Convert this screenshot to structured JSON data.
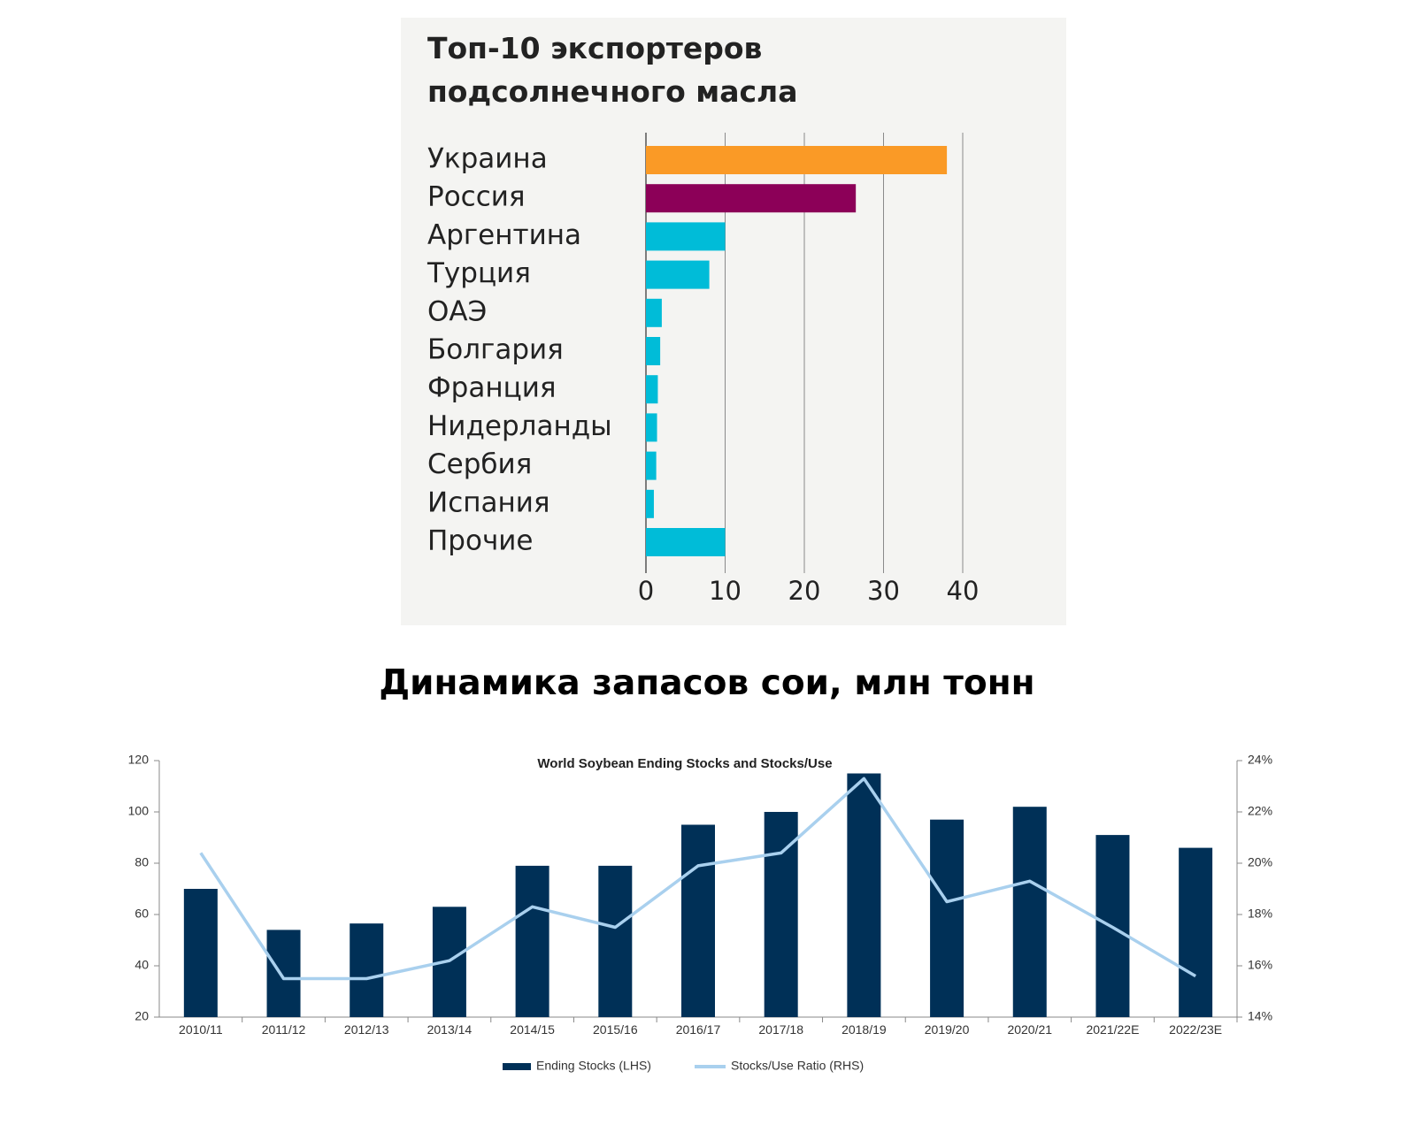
{
  "chart_data": [
    {
      "type": "bar",
      "orientation": "horizontal",
      "title": "Топ-10 экспортеров подсолнечного масла",
      "categories": [
        "Украина",
        "Россия",
        "Аргентина",
        "Турция",
        "ОАЭ",
        "Болгария",
        "Франция",
        "Нидерланды",
        "Сербия",
        "Испания",
        "Прочие"
      ],
      "values": [
        38,
        26.5,
        10,
        8,
        2,
        1.8,
        1.5,
        1.4,
        1.3,
        1,
        10
      ],
      "colors": [
        "#fa9a26",
        "#8c0058",
        "#00bcd8",
        "#00bcd8",
        "#00bcd8",
        "#00bcd8",
        "#00bcd8",
        "#00bcd8",
        "#00bcd8",
        "#00bcd8",
        "#00bcd8"
      ],
      "xlim": [
        0,
        40
      ],
      "xticks": [
        "0",
        "10",
        "20",
        "30",
        "40"
      ],
      "grid": true
    },
    {
      "type": "bar+line",
      "title": "World Soybean Ending Stocks and Stocks/Use",
      "categories": [
        "2010/11",
        "2011/12",
        "2012/13",
        "2013/14",
        "2014/15",
        "2015/16",
        "2016/17",
        "2017/18",
        "2018/19",
        "2019/20",
        "2020/21",
        "2021/22E",
        "2022/23E"
      ],
      "series": [
        {
          "name": "Ending Stocks (LHS)",
          "type": "bar",
          "axis": "left",
          "color": "#003057",
          "values": [
            70,
            54,
            56.5,
            63,
            79,
            79,
            95,
            100,
            115,
            97,
            102,
            91,
            86
          ]
        },
        {
          "name": "Stocks/Use Ratio (RHS)",
          "type": "line",
          "axis": "right",
          "color": "#a9d0ee",
          "values": [
            20.4,
            15.5,
            15.5,
            16.2,
            18.3,
            17.5,
            19.9,
            20.4,
            23.3,
            18.5,
            19.3,
            17.5,
            15.6
          ]
        }
      ],
      "left_axis": {
        "ylim": [
          20,
          120
        ],
        "ticks": [
          "120",
          "100",
          "80",
          "60",
          "40",
          "20"
        ]
      },
      "right_axis": {
        "ylim": [
          14,
          24
        ],
        "ticks": [
          "24%",
          "22%",
          "20%",
          "18%",
          "16%",
          "14%"
        ]
      },
      "legend_position": "bottom"
    }
  ],
  "section_heading": "Динамика запасов сои, млн тонн"
}
